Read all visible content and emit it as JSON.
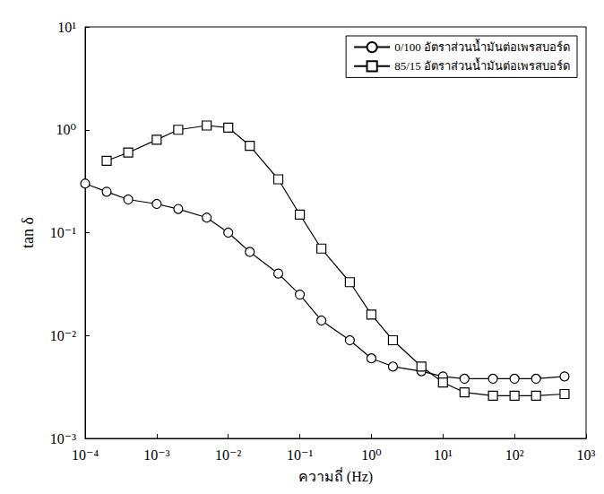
{
  "chart_data": {
    "type": "line",
    "x_label": "ความถี่ (Hz)",
    "y_label": "tan δ",
    "log": true,
    "grid": false,
    "legend": "upper right",
    "xlim": [
      0.0001,
      1000
    ],
    "ylim": [
      0.001,
      10
    ],
    "xticks": [
      {
        "value": 0.0001,
        "label": "10⁻⁴"
      },
      {
        "value": 0.001,
        "label": "10⁻³"
      },
      {
        "value": 0.01,
        "label": "10⁻²"
      },
      {
        "value": 0.1,
        "label": "10⁻¹"
      },
      {
        "value": 1,
        "label": "10⁰"
      },
      {
        "value": 10,
        "label": "10¹"
      },
      {
        "value": 100,
        "label": "10²"
      },
      {
        "value": 1000,
        "label": "10³"
      }
    ],
    "yticks": [
      {
        "value": 0.001,
        "label": "10⁻³"
      },
      {
        "value": 0.01,
        "label": "10⁻²"
      },
      {
        "value": 0.1,
        "label": "10⁻¹"
      },
      {
        "value": 1,
        "label": "10⁰"
      },
      {
        "value": 10,
        "label": "10¹"
      }
    ],
    "series": [
      {
        "name": "0/100 อัตราส่วนน้ำมันต่อเพรสบอร์ด",
        "color": "#000000",
        "marker": "circle",
        "line_style": "solid",
        "x": [
          0.0001,
          0.0002,
          0.0004,
          0.001,
          0.002,
          0.005,
          0.01,
          0.02,
          0.05,
          0.1,
          0.2,
          0.5,
          1,
          2,
          5,
          10,
          20,
          50,
          100,
          200,
          500
        ],
        "values": [
          0.3,
          0.25,
          0.21,
          0.19,
          0.17,
          0.14,
          0.1,
          0.065,
          0.04,
          0.025,
          0.014,
          0.009,
          0.006,
          0.005,
          0.0045,
          0.004,
          0.0038,
          0.0038,
          0.0038,
          0.0038,
          0.004
        ]
      },
      {
        "name": "85/15 อัตราส่วนน้ำมันต่อเพรสบอร์ด",
        "color": "#000000",
        "marker": "square",
        "line_style": "solid",
        "x": [
          0.0002,
          0.0004,
          0.001,
          0.002,
          0.005,
          0.01,
          0.02,
          0.05,
          0.1,
          0.2,
          0.5,
          1,
          2,
          5,
          10,
          20,
          50,
          100,
          200,
          500
        ],
        "values": [
          0.5,
          0.6,
          0.8,
          1.0,
          1.1,
          1.05,
          0.7,
          0.33,
          0.15,
          0.07,
          0.033,
          0.016,
          0.009,
          0.005,
          0.0035,
          0.0028,
          0.0026,
          0.0026,
          0.0026,
          0.0027
        ]
      }
    ]
  }
}
